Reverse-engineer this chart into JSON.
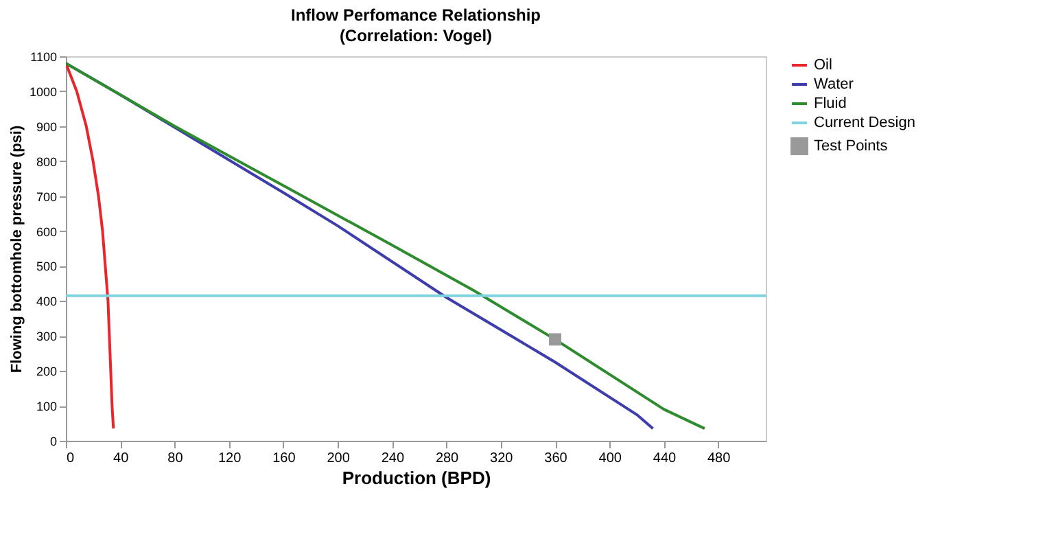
{
  "chart_data": {
    "type": "line",
    "title": "Inflow Perfomance Relationship",
    "subtitle": "(Correlation: Vogel)",
    "xlabel": "Production (BPD)",
    "ylabel": "Flowing bottomhole pressure (psi)",
    "xlim": [
      0,
      515
    ],
    "xticks": [
      0,
      40,
      80,
      120,
      160,
      200,
      240,
      280,
      320,
      360,
      400,
      440,
      480
    ],
    "ylim": [
      0,
      1100
    ],
    "yticks": [
      0,
      100,
      200,
      300,
      400,
      500,
      600,
      700,
      800,
      900,
      1000,
      1100
    ],
    "grid": false,
    "legend": "right",
    "line_style": "solid",
    "series": [
      {
        "name": "Oil",
        "color": "#e8262b",
        "x": [
          0,
          8,
          15,
          20,
          24,
          27,
          29,
          31,
          32,
          33,
          34,
          35
        ],
        "values": [
          1080,
          1000,
          900,
          800,
          700,
          600,
          500,
          400,
          300,
          200,
          100,
          35
        ]
      },
      {
        "name": "Water",
        "color": "#3d3dab",
        "x": [
          0,
          40,
          100,
          160,
          200,
          280,
          360,
          420,
          432
        ],
        "values": [
          1080,
          990,
          850,
          710,
          615,
          410,
          225,
          75,
          35
        ]
      },
      {
        "name": "Fluid",
        "color": "#2e8b2e",
        "x": [
          0,
          80,
          160,
          240,
          300,
          360,
          440,
          470
        ],
        "values": [
          1080,
          900,
          730,
          560,
          430,
          290,
          90,
          35
        ]
      },
      {
        "name": "Current Design",
        "color": "#7fd3df",
        "x": [
          0,
          515
        ],
        "values": [
          415,
          415
        ]
      },
      {
        "name": "Test Points",
        "type": "scatter",
        "marker": "square",
        "color": "#999999",
        "x": [
          360
        ],
        "values": [
          290
        ]
      }
    ]
  }
}
